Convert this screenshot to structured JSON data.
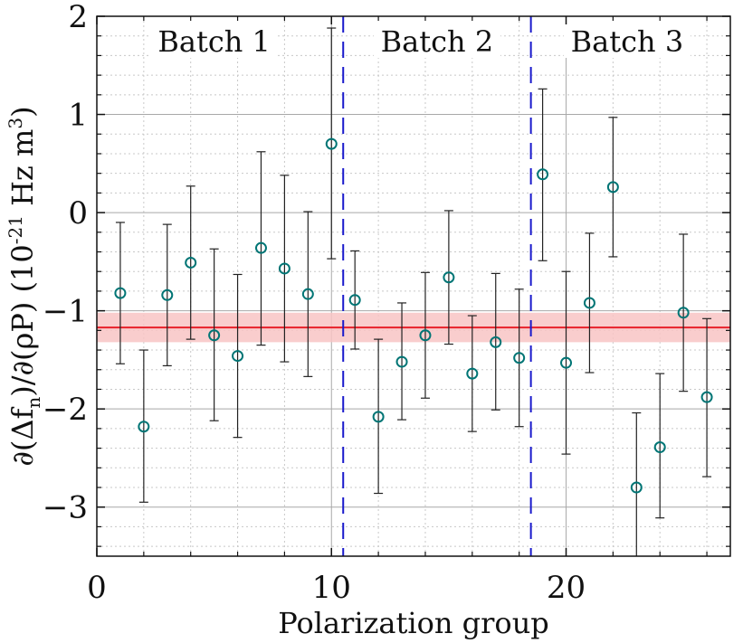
{
  "chart_data": {
    "type": "scatter",
    "xlabel": "Polarization group",
    "ylabel_parts": {
      "prefix": "∂(Δf",
      "sub": "n",
      "middle": ")/∂(ρP) (10",
      "sup": "-21",
      "suffix": " Hz m",
      "sup2": "3",
      "close": ")"
    },
    "xlim": [
      0,
      27
    ],
    "ylim": [
      -3.5,
      2
    ],
    "xticks": [
      {
        "value": 0,
        "label": "0"
      },
      {
        "value": 10,
        "label": "10"
      },
      {
        "value": 20,
        "label": "20"
      }
    ],
    "yticks": [
      {
        "value": -3,
        "label": "−3"
      },
      {
        "value": -2,
        "label": "−2"
      },
      {
        "value": -1,
        "label": "−1"
      },
      {
        "value": 0,
        "label": "0"
      },
      {
        "value": 1,
        "label": "1"
      },
      {
        "value": 2,
        "label": "2"
      }
    ],
    "grid": true,
    "batches": [
      {
        "label": "Batch 1",
        "center_x": 5
      },
      {
        "label": "Batch 2",
        "center_x": 14.5
      },
      {
        "label": "Batch 3",
        "center_x": 22.6
      }
    ],
    "dividers_x": [
      10.5,
      18.5
    ],
    "mean": {
      "value": -1.17,
      "band": [
        -1.32,
        -1.02
      ]
    },
    "points": [
      {
        "x": 1,
        "y": -0.82,
        "lo": -1.54,
        "hi": -0.1
      },
      {
        "x": 2,
        "y": -2.18,
        "lo": -2.95,
        "hi": -1.4
      },
      {
        "x": 3,
        "y": -0.84,
        "lo": -1.56,
        "hi": -0.12
      },
      {
        "x": 4,
        "y": -0.51,
        "lo": -1.29,
        "hi": 0.27
      },
      {
        "x": 5,
        "y": -1.25,
        "lo": -2.12,
        "hi": -0.37
      },
      {
        "x": 6,
        "y": -1.46,
        "lo": -2.29,
        "hi": -0.63
      },
      {
        "x": 7,
        "y": -0.36,
        "lo": -1.35,
        "hi": 0.62
      },
      {
        "x": 8,
        "y": -0.57,
        "lo": -1.52,
        "hi": 0.38
      },
      {
        "x": 9,
        "y": -0.83,
        "lo": -1.67,
        "hi": 0.01
      },
      {
        "x": 10,
        "y": 0.7,
        "lo": -0.47,
        "hi": 1.88
      },
      {
        "x": 11,
        "y": -0.89,
        "lo": -1.39,
        "hi": -0.39
      },
      {
        "x": 12,
        "y": -2.08,
        "lo": -2.86,
        "hi": -1.29
      },
      {
        "x": 13,
        "y": -1.52,
        "lo": -2.11,
        "hi": -0.92
      },
      {
        "x": 14,
        "y": -1.25,
        "lo": -1.89,
        "hi": -0.61
      },
      {
        "x": 15,
        "y": -0.66,
        "lo": -1.34,
        "hi": 0.02
      },
      {
        "x": 16,
        "y": -1.64,
        "lo": -2.23,
        "hi": -1.05
      },
      {
        "x": 17,
        "y": -1.32,
        "lo": -2.01,
        "hi": -0.62
      },
      {
        "x": 18,
        "y": -1.48,
        "lo": -2.18,
        "hi": -0.78
      },
      {
        "x": 19,
        "y": 0.39,
        "lo": -0.49,
        "hi": 1.26
      },
      {
        "x": 20,
        "y": -1.53,
        "lo": -2.46,
        "hi": -0.6
      },
      {
        "x": 21,
        "y": -0.92,
        "lo": -1.63,
        "hi": -0.21
      },
      {
        "x": 22,
        "y": 0.26,
        "lo": -0.45,
        "hi": 0.97
      },
      {
        "x": 23,
        "y": -2.8,
        "lo": -3.6,
        "hi": -2.04
      },
      {
        "x": 24,
        "y": -2.39,
        "lo": -3.11,
        "hi": -1.64
      },
      {
        "x": 25,
        "y": -1.02,
        "lo": -1.82,
        "hi": -0.22
      },
      {
        "x": 26,
        "y": -1.88,
        "lo": -2.69,
        "hi": -1.08
      }
    ],
    "colors": {
      "marker": "#007575",
      "errorbar": "#222222",
      "mean_line": "#e8202a",
      "mean_band": "#f8c4c4",
      "divider": "#1a1acc",
      "major_grid": "#a8a8a8",
      "minor_grid": "#c8c8c8"
    }
  }
}
